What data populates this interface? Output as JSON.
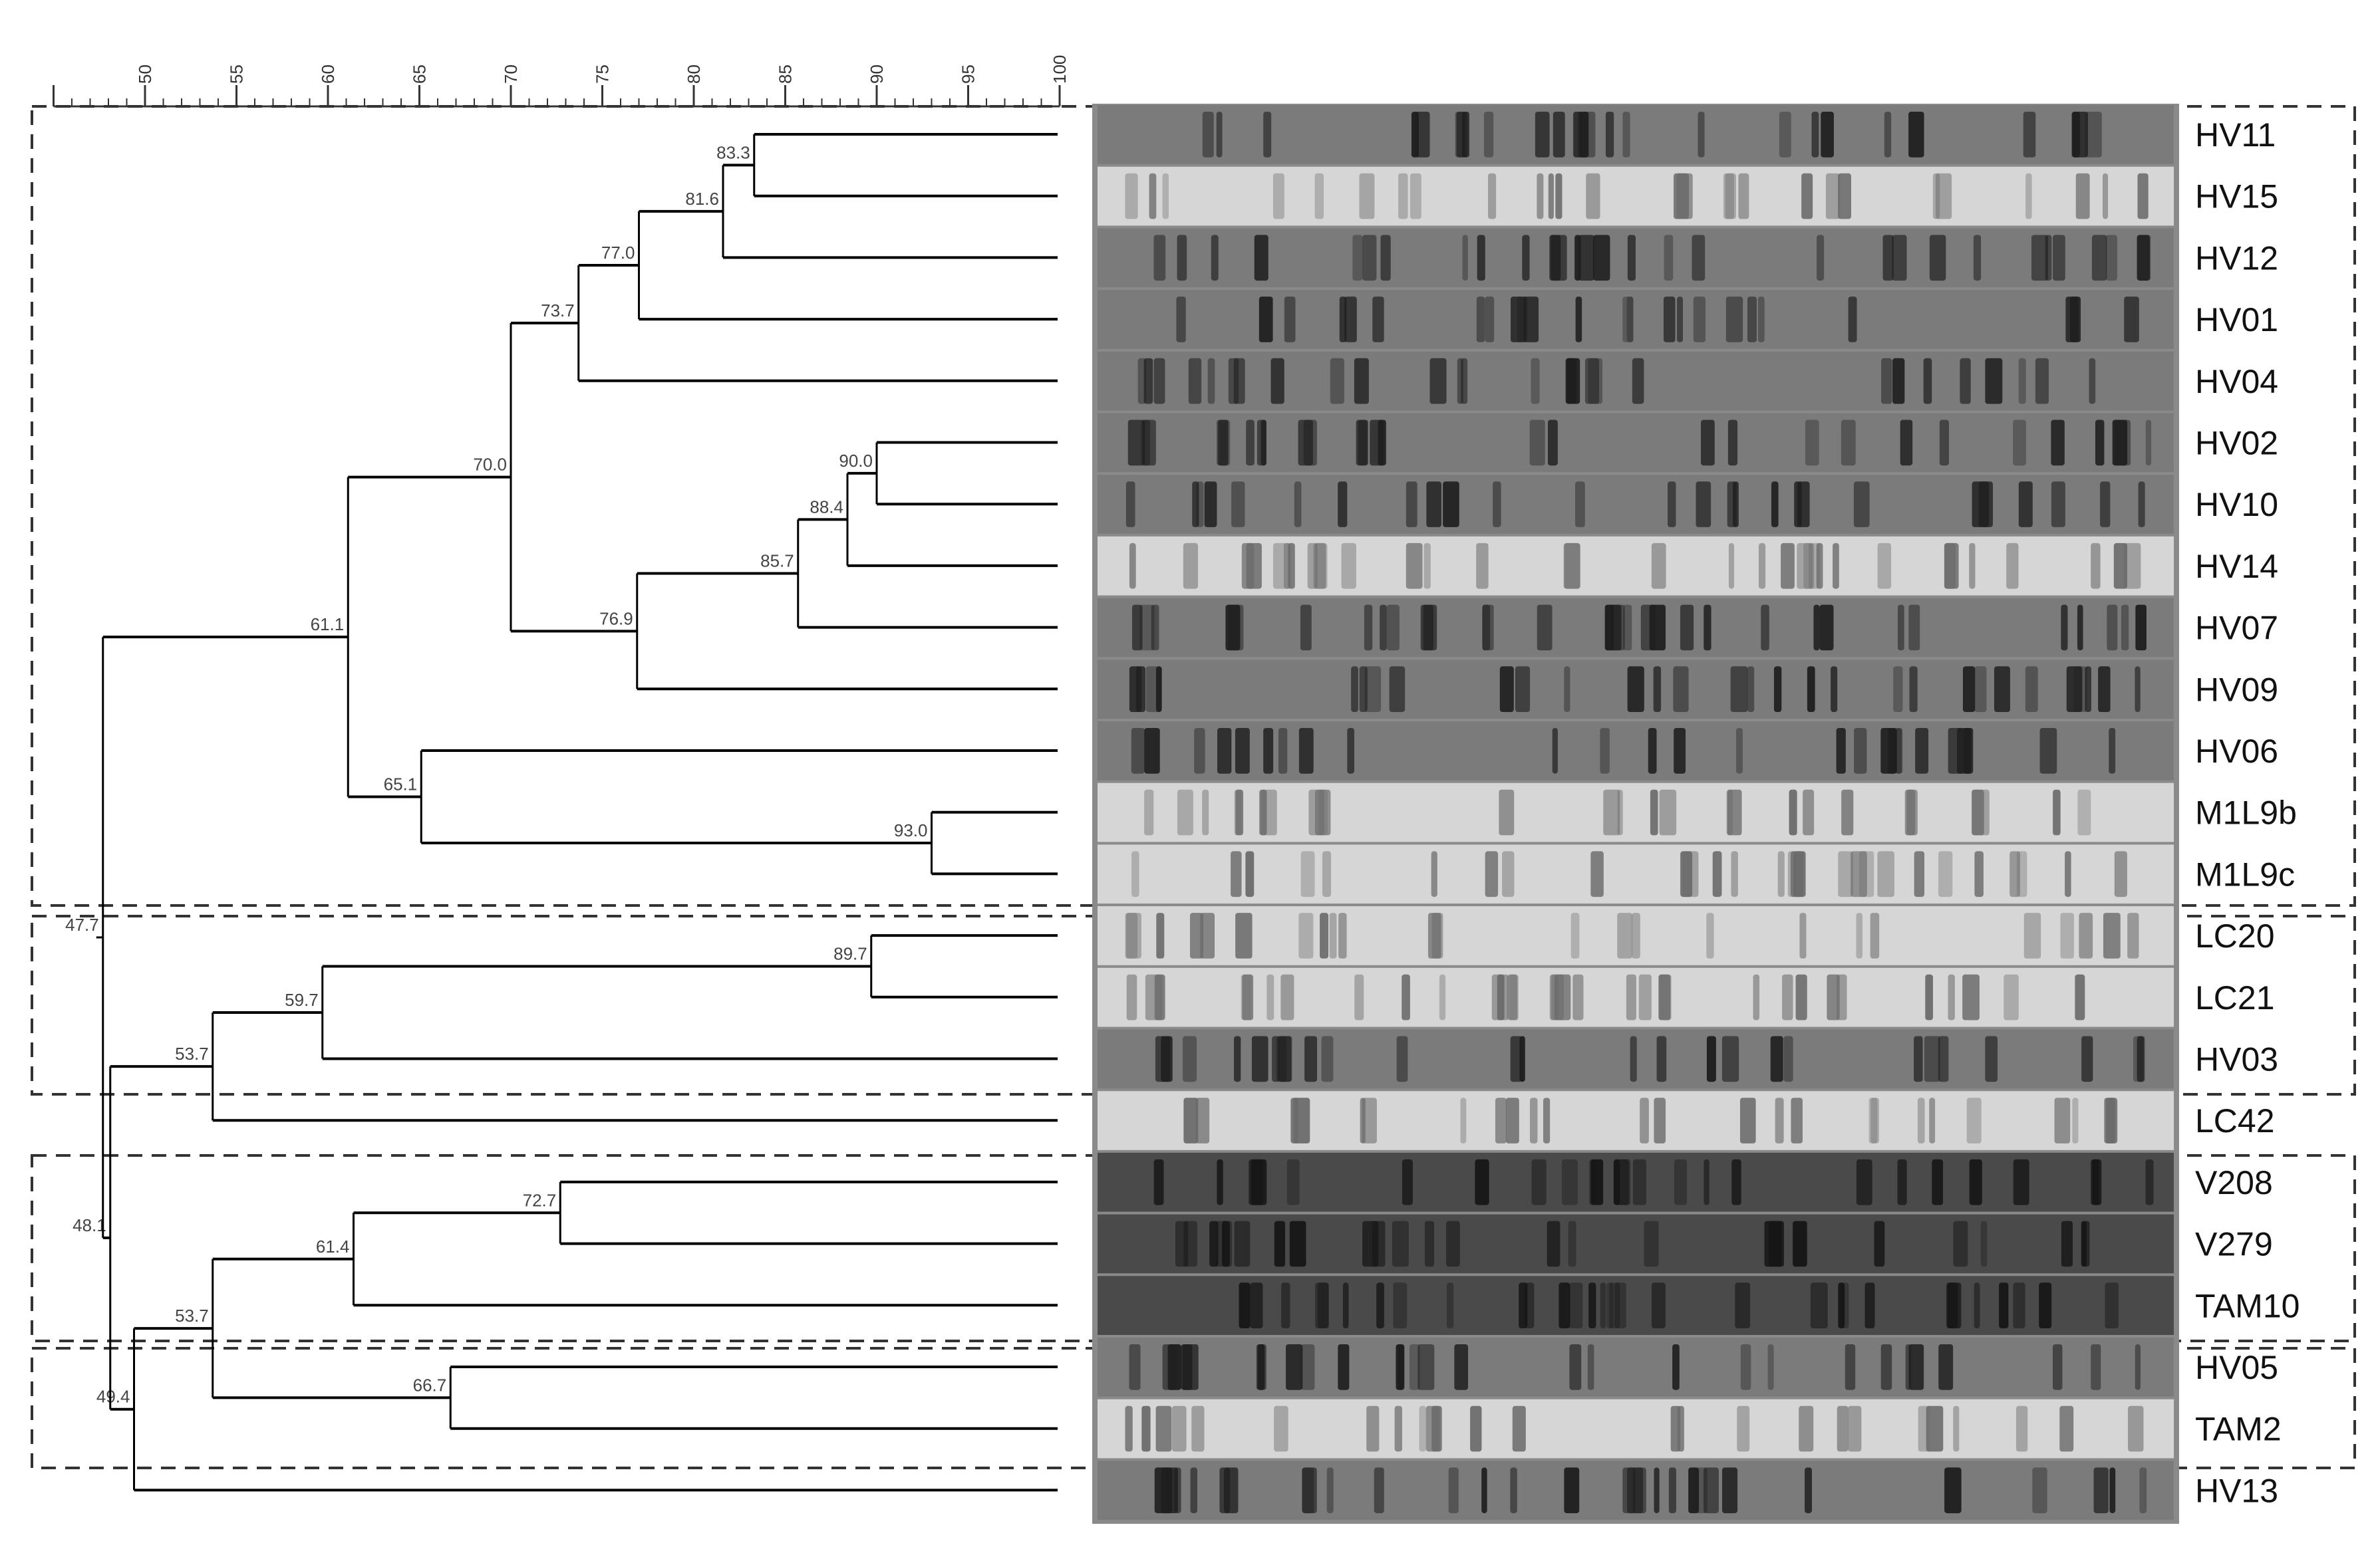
{
  "scale": {
    "min": 45,
    "max": 100,
    "labels": [
      50,
      55,
      60,
      65,
      70,
      75,
      80,
      85,
      90,
      95,
      100
    ]
  },
  "leaves": [
    "HV11",
    "HV15",
    "HV12",
    "HV01",
    "HV04",
    "HV02",
    "HV10",
    "HV14",
    "HV07",
    "HV09",
    "HV06",
    "M1L9b",
    "M1L9c",
    "LC20",
    "LC21",
    "HV03",
    "LC42",
    "V208",
    "V279",
    "TAM10",
    "HV05",
    "TAM2",
    "HV13"
  ],
  "nodes": [
    {
      "id": "n1",
      "sim": "83.3",
      "children": [
        "HV11",
        "HV15"
      ]
    },
    {
      "id": "n2",
      "sim": "81.6",
      "children": [
        "n1",
        "HV12"
      ]
    },
    {
      "id": "n3",
      "sim": "77.0",
      "children": [
        "n2",
        "HV01"
      ]
    },
    {
      "id": "n4",
      "sim": "73.7",
      "children": [
        "n3",
        "HV04"
      ]
    },
    {
      "id": "n5",
      "sim": "90.0",
      "children": [
        "HV02",
        "HV10"
      ]
    },
    {
      "id": "n6",
      "sim": "88.4",
      "children": [
        "n5",
        "HV14"
      ]
    },
    {
      "id": "n7",
      "sim": "85.7",
      "children": [
        "n6",
        "HV07"
      ]
    },
    {
      "id": "n8",
      "sim": "76.9",
      "children": [
        "n7",
        "HV09"
      ]
    },
    {
      "id": "n9",
      "sim": "70.0",
      "children": [
        "n4",
        "n8"
      ]
    },
    {
      "id": "n10",
      "sim": "93.0",
      "children": [
        "M1L9b",
        "M1L9c"
      ]
    },
    {
      "id": "n11",
      "sim": "65.1",
      "children": [
        "HV06",
        "n10"
      ]
    },
    {
      "id": "n12",
      "sim": "61.1",
      "children": [
        "n9",
        "n11"
      ]
    },
    {
      "id": "n13",
      "sim": "89.7",
      "children": [
        "LC20",
        "LC21"
      ]
    },
    {
      "id": "n14",
      "sim": "59.7",
      "children": [
        "n13",
        "HV03"
      ]
    },
    {
      "id": "n15",
      "sim": "53.7",
      "children": [
        "n14",
        "LC42"
      ]
    },
    {
      "id": "n16",
      "sim": "72.7",
      "children": [
        "V208",
        "V279"
      ]
    },
    {
      "id": "n17",
      "sim": "61.4",
      "children": [
        "n16",
        "TAM10"
      ]
    },
    {
      "id": "n18",
      "sim": "66.7",
      "children": [
        "HV05",
        "TAM2"
      ]
    },
    {
      "id": "n19",
      "sim": "53.7",
      "children": [
        "n17",
        "n18"
      ]
    },
    {
      "id": "n20",
      "sim": "49.4",
      "children": [
        "n19",
        "HV13"
      ]
    },
    {
      "id": "n21",
      "sim": "48.1",
      "children": [
        "n15",
        "n20"
      ]
    },
    {
      "id": "n22",
      "sim": "47.7",
      "children": [
        "n12",
        "n21"
      ]
    }
  ],
  "gel": {
    "lane_tones": [
      "dark",
      "light",
      "dark",
      "dark",
      "dark",
      "dark",
      "dark",
      "light",
      "dark",
      "dark",
      "dark",
      "light",
      "light",
      "light",
      "light",
      "dark",
      "light",
      "vdark",
      "vdark",
      "vdark",
      "dark",
      "light",
      "dark"
    ]
  }
}
